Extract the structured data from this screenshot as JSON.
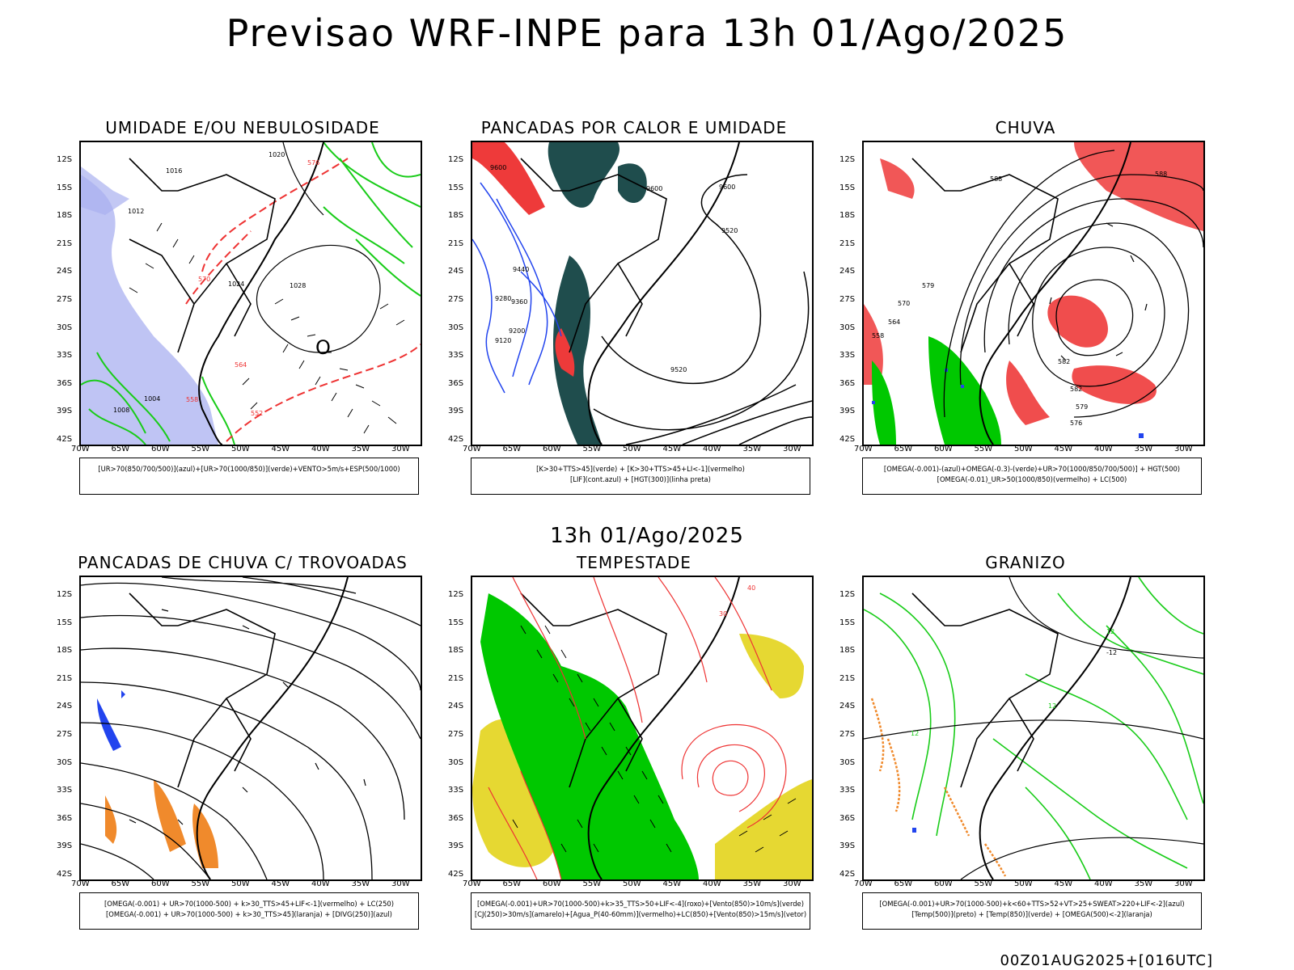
{
  "title": "Previsao WRF-INPE  para 13h 01/Ago/2025",
  "subtitle_time": "13h 01/Ago/2025",
  "footer_run": "00Z01AUG2025+[016UTC]",
  "lat_labels": [
    "12S",
    "15S",
    "18S",
    "21S",
    "24S",
    "27S",
    "30S",
    "33S",
    "36S",
    "39S",
    "42S"
  ],
  "lon_labels": [
    "70W",
    "65W",
    "60W",
    "55W",
    "50W",
    "45W",
    "40W",
    "35W",
    "30W"
  ],
  "colors": {
    "lavender": "#aab0f0",
    "green_line": "#19cc19",
    "red_line": "#ee3333",
    "teal": "#1f4d4d",
    "blue_line": "#2244ee",
    "red_fill": "#ee3a3a",
    "green_fill": "#00c800",
    "yellow_fill": "#e6d832",
    "orange": "#f08a2c"
  },
  "panels": [
    {
      "title": "UMIDADE E/OU NEBULOSIDADE",
      "legend": [
        "[UR>70(850/700/500)](azul)+[UR>70(1000/850)](verde)+VENTO>5m/s+ESP(500/1000)"
      ],
      "contour_labels": [
        "1016",
        "1020",
        "1012",
        "1024",
        "1028",
        "1004",
        "1008",
        "576",
        "570",
        "564",
        "558",
        "552",
        "O"
      ]
    },
    {
      "title": "PANCADAS POR CALOR E UMIDADE",
      "legend": [
        "[K>30+TTS>45](verde) + [K>30+TTS>45+LI<-1](vermelho)",
        "[LIF](cont.azul) + [HGT(300)](linha preta)"
      ],
      "contour_labels": [
        "9600",
        "9520",
        "9440",
        "9360",
        "9280",
        "9200",
        "9120"
      ]
    },
    {
      "title": "CHUVA",
      "legend": [
        "[OMEGA(-0.001)-(azul)+OMEGA(-0.3)-(verde)+UR>70(1000/850/700/500)] + HGT(500)",
        "[OMEGA(-0.01)_UR>50(1000/850)(vermelho) + LC(500)"
      ],
      "contour_labels": [
        "588",
        "582",
        "579",
        "576",
        "570",
        "564",
        "558"
      ]
    },
    {
      "title": "PANCADAS DE CHUVA C/ TROVOADAS",
      "legend": [
        "[OMEGA(-0.001) + UR>70(1000-500) + k>30_TTS>45+LIF<-1](vermelho) + LC(250)",
        "[OMEGA(-0.001) + UR>70(1000-500) + k>30_TTS>45](laranja) + [DIVG(250)](azul)"
      ],
      "contour_labels": []
    },
    {
      "title": "TEMPESTADE",
      "legend": [
        "[OMEGA(-0.001)+UR>70(1000-500)+k>35_TTS>50+LIF<-4](roxo)+[Vento(850)>10m/s](verde)",
        "[CJ(250)>30m/s](amarelo)+[Agua_P(40-60mm)](vermelho)+LC(850)+[Vento(850)>15m/s](vetor)"
      ],
      "contour_labels": [
        "40",
        "30"
      ]
    },
    {
      "title": "GRANIZO",
      "legend": [
        "[OMEGA(-0.001)+UR>70(1000-500)+k<60+TTS>52+VT>25+SWEAT>220+LIF<-2](azul)",
        "[Temp(500)](preto) + [Temp(850)](verde) + [OMEGA(500)<-2](laranja)"
      ],
      "contour_labels": [
        "-12",
        "12"
      ]
    }
  ]
}
